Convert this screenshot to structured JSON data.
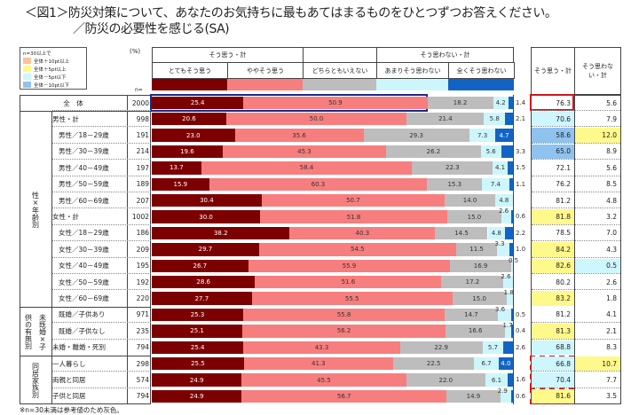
{
  "title": "＜図1＞防災対策について、あなたのお気持ちに最もあてはまるものをひとつずつお答えください。",
  "subtitle": "／防災の必要性を感じる(SA)",
  "percent_unit": "(%)",
  "n_label": "n=",
  "footnote": "※n=30未満は参考値のため灰色。",
  "legend": {
    "title": "n=30以上で",
    "items": [
      {
        "label": "全体＋10pt以上",
        "color": "#f9c29a"
      },
      {
        "label": "全体＋5pt以上",
        "color": "#fff88a"
      },
      {
        "label": "全体－5pt以下",
        "color": "#cdf6fd"
      },
      {
        "label": "全体－10pt以下",
        "color": "#8fc3ef"
      }
    ]
  },
  "header": {
    "agree_group": "そう思う・計",
    "disagree_group": "そう思わない・計",
    "agree_total": "そう思う・計",
    "disagree_total": "そう思わない・計"
  },
  "groups": [
    {
      "label": "性×年齢別"
    },
    {
      "label": "未既婚×子供の有無別",
      "col1": "未既婚×子",
      "col2": "供の有無別"
    },
    {
      "label": "同居家族別"
    }
  ],
  "chart_data": {
    "type": "bar",
    "orientation": "horizontal",
    "stacked": true,
    "xlim": [
      0,
      100
    ],
    "unit": "%",
    "series": [
      {
        "name": "とてもそう思う",
        "color": "#7d0000",
        "values": [
          25.4,
          20.6,
          23.0,
          19.6,
          13.7,
          15.9,
          30.4,
          30.0,
          38.2,
          29.7,
          26.7,
          28.6,
          27.7,
          25.3,
          25.1,
          25.4,
          25.5,
          24.9,
          24.9
        ]
      },
      {
        "name": "ややそう思う",
        "color": "#f77e7e",
        "values": [
          50.9,
          50.0,
          35.6,
          45.3,
          58.4,
          60.3,
          50.7,
          51.8,
          40.3,
          54.5,
          55.9,
          51.6,
          55.5,
          55.8,
          56.2,
          43.3,
          41.3,
          45.5,
          56.7
        ]
      },
      {
        "name": "どちらともいえない",
        "color": "#bdbdbd",
        "values": [
          18.2,
          21.4,
          29.3,
          26.2,
          22.3,
          15.3,
          14.0,
          15.0,
          14.5,
          11.5,
          16.9,
          17.2,
          15.0,
          14.7,
          16.6,
          22.9,
          22.5,
          22.0,
          14.9
        ]
      },
      {
        "name": "あまりそう思わない",
        "color": "#ccf6fc",
        "values": [
          4.2,
          5.8,
          7.3,
          5.6,
          4.1,
          7.4,
          4.8,
          2.6,
          4.8,
          3.3,
          0.5,
          2.6,
          1.8,
          3.6,
          1.7,
          5.7,
          6.7,
          6.1,
          2.9
        ]
      },
      {
        "name": "全くそう思わない",
        "color": "#1164c4",
        "values": [
          1.4,
          2.1,
          4.7,
          3.3,
          1.5,
          1.1,
          0.0,
          0.6,
          2.2,
          1.0,
          0.0,
          0.0,
          0.0,
          0.5,
          0.4,
          2.6,
          4.0,
          1.6,
          0.6
        ]
      }
    ],
    "categories": [
      "全　体",
      "男性・計",
      "男性／18－29歳",
      "男性／30－39歳",
      "男性／40－49歳",
      "男性／50－59歳",
      "男性／60－69歳",
      "女性・計",
      "女性／18－29歳",
      "女性／30－39歳",
      "女性／40－49歳",
      "女性／50－59歳",
      "女性／60－69歳",
      "既婚／子供あり",
      "既婚／子供なし",
      "未婚・離婚・死別",
      "一人暮らし",
      "両親と同居",
      "子供と同居"
    ],
    "n": [
      2000,
      998,
      191,
      214,
      197,
      189,
      207,
      1002,
      186,
      209,
      195,
      192,
      220,
      971,
      235,
      794,
      298,
      574,
      794
    ],
    "agree_total": [
      76.3,
      70.6,
      58.6,
      65.0,
      72.1,
      76.2,
      81.2,
      81.8,
      78.5,
      84.2,
      82.6,
      80.2,
      83.2,
      81.2,
      81.3,
      68.8,
      66.8,
      70.4,
      81.6
    ],
    "disagree_total": [
      5.6,
      7.9,
      12.0,
      8.9,
      5.6,
      8.5,
      4.8,
      3.2,
      7.0,
      4.3,
      0.5,
      2.6,
      1.8,
      4.1,
      2.1,
      8.3,
      10.7,
      7.7,
      3.5
    ],
    "agree_total_highlight": [
      "",
      "minus5",
      "minus10",
      "minus10",
      "",
      "",
      "",
      "plus5",
      "",
      "plus5",
      "plus5",
      "",
      "plus5",
      "",
      "plus5",
      "minus5",
      "minus5",
      "minus5",
      "plus5"
    ],
    "disagree_total_highlight": [
      "",
      "",
      "plus5",
      "",
      "",
      "",
      "",
      "",
      "",
      "",
      "minus5",
      "",
      "",
      "",
      "",
      "",
      "plus5",
      "",
      ""
    ]
  }
}
